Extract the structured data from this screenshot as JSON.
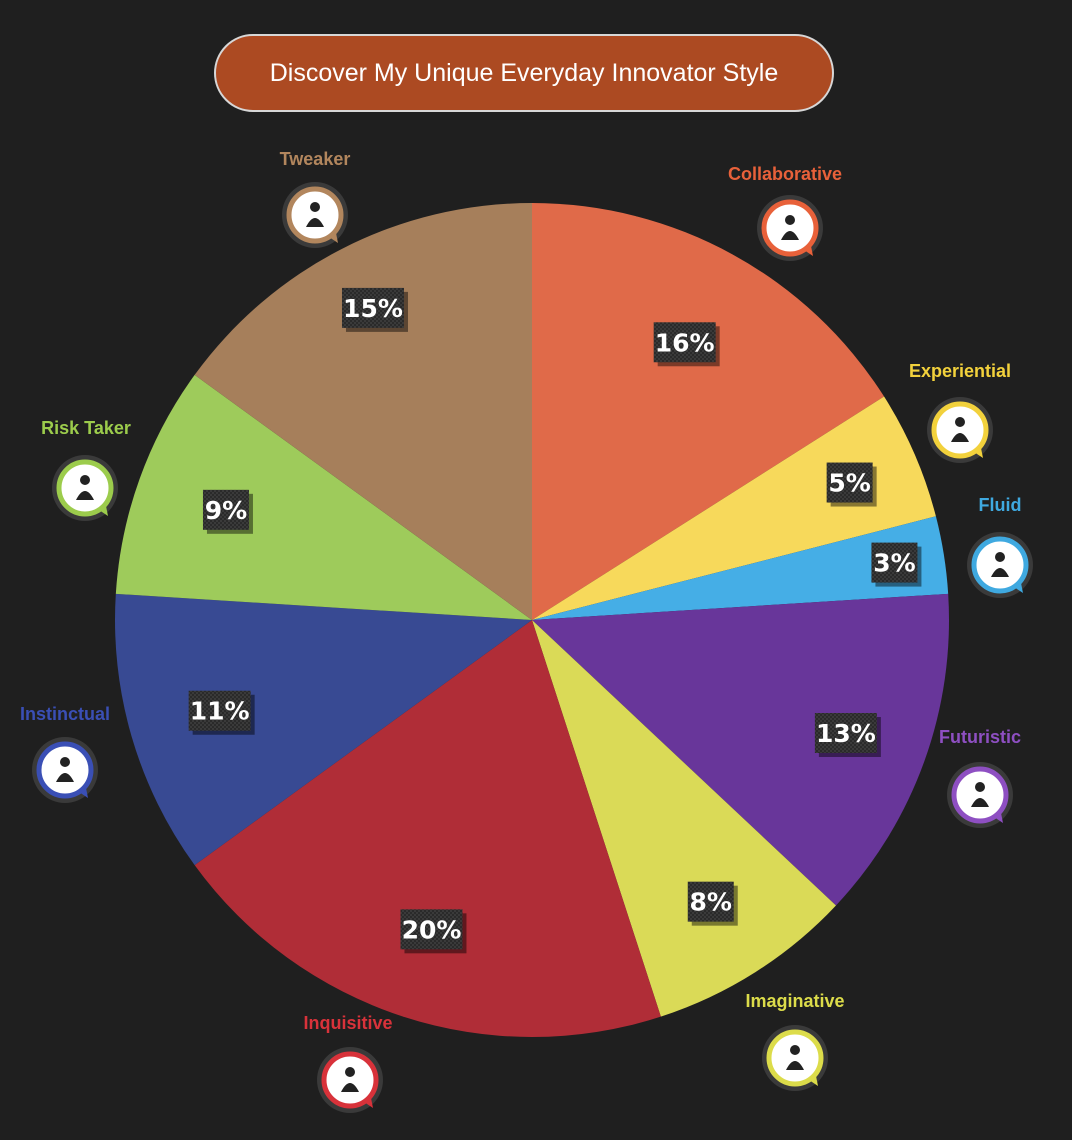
{
  "header": {
    "button_label": "Discover My Unique Everyday Innovator Style"
  },
  "chart_data": {
    "type": "pie",
    "start_angle_deg": 0,
    "direction": "clockwise",
    "slices": [
      {
        "label": "Collaborative",
        "value": 16,
        "value_label": "16%",
        "color": "#e06a49",
        "label_color": "#e8613a",
        "icon": "collaborative-people-icon"
      },
      {
        "label": "Experiential",
        "value": 5,
        "value_label": "5%",
        "color": "#f7d95b",
        "label_color": "#f2d13c",
        "icon": "parachute-icon"
      },
      {
        "label": "Fluid",
        "value": 3,
        "value_label": "3%",
        "color": "#45aee6",
        "label_color": "#3fa9e0",
        "icon": "fluid-s-icon"
      },
      {
        "label": "Futuristic",
        "value": 13,
        "value_label": "13%",
        "color": "#68369a",
        "label_color": "#8e4fc2",
        "icon": "futuristic-person-icon"
      },
      {
        "label": "Imaginative",
        "value": 8,
        "value_label": "8%",
        "color": "#dada57",
        "label_color": "#dcdc4a",
        "icon": "imaginative-head-icon"
      },
      {
        "label": "Inquisitive",
        "value": 20,
        "value_label": "20%",
        "color": "#b02d37",
        "label_color": "#d8323a",
        "icon": "inquisitive-question-icon"
      },
      {
        "label": "Instinctual",
        "value": 11,
        "value_label": "11%",
        "color": "#384a93",
        "label_color": "#3a4fb5",
        "icon": "meditation-icon"
      },
      {
        "label": "Risk Taker",
        "value": 9,
        "value_label": "9%",
        "color": "#9ecb5b",
        "label_color": "#9ccc4c",
        "icon": "cliff-climber-icon"
      },
      {
        "label": "Tweaker",
        "value": 15,
        "value_label": "15%",
        "color": "#a67f5b",
        "label_color": "#b2865d",
        "icon": "tweaker-board-icon"
      }
    ]
  }
}
